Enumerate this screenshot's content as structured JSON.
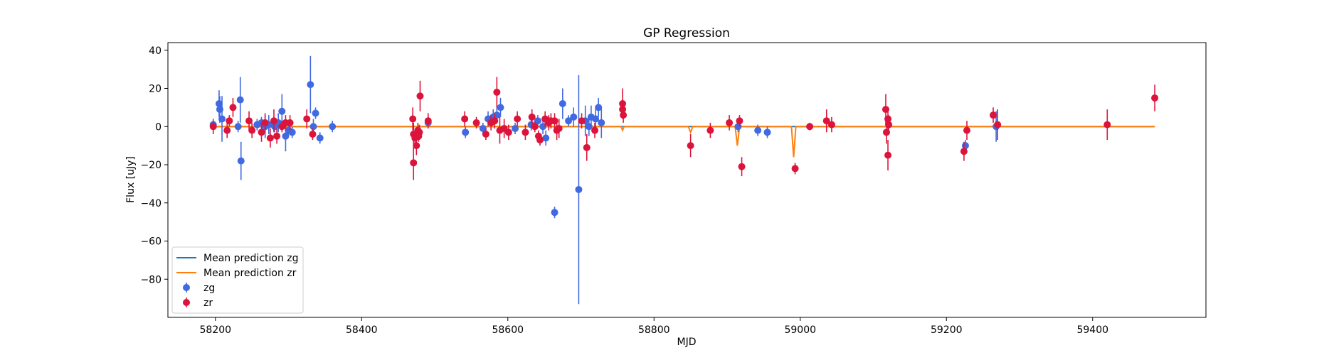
{
  "chart_data": {
    "type": "scatter",
    "title": "GP Regression",
    "xlabel": "MJD",
    "ylabel": "Flux [uJy]",
    "xlim": [
      58135,
      59555
    ],
    "ylim": [
      -100,
      44
    ],
    "xticks": [
      58200,
      58400,
      58600,
      58800,
      59000,
      59200,
      59400
    ],
    "yticks": [
      40,
      20,
      0,
      -20,
      -40,
      -60,
      -80
    ],
    "grid": false,
    "legend_position": "lower-left",
    "legend": [
      {
        "label": "Mean prediction zg",
        "kind": "line",
        "color": "#1f77b4"
      },
      {
        "label": "Mean prediction zr",
        "kind": "line",
        "color": "#ff7f0e"
      },
      {
        "label": "zg",
        "kind": "errorbar",
        "color": "#4169e1"
      },
      {
        "label": "zr",
        "kind": "errorbar",
        "color": "#dc143c"
      }
    ],
    "lines": [
      {
        "name": "Mean prediction zg",
        "color": "#1f77b4",
        "x": [
          58200,
          59485
        ],
        "y": [
          0,
          0
        ]
      },
      {
        "name": "Mean prediction zr",
        "color": "#ff7f0e",
        "x": [
          58200,
          58755,
          58757,
          58759,
          58847,
          58850,
          58853,
          58911,
          58914,
          58917,
          58988,
          58991,
          58994,
          59485
        ],
        "y": [
          0,
          0,
          -2,
          0,
          0,
          -3,
          0,
          0,
          -10,
          0,
          0,
          -16,
          0,
          0
        ]
      }
    ],
    "series": [
      {
        "name": "zg",
        "color": "#4169e1",
        "points": [
          [
            58197,
            1,
            2
          ],
          [
            58205,
            12,
            7
          ],
          [
            58206,
            9,
            7
          ],
          [
            58209,
            4,
            12
          ],
          [
            58231,
            0,
            3
          ],
          [
            58234,
            14,
            12
          ],
          [
            58235,
            -18,
            10
          ],
          [
            58257,
            1,
            3
          ],
          [
            58263,
            2,
            3
          ],
          [
            58268,
            0,
            6
          ],
          [
            58273,
            1,
            5
          ],
          [
            58281,
            0,
            3
          ],
          [
            58286,
            2,
            5
          ],
          [
            58291,
            8,
            9
          ],
          [
            58296,
            -5,
            8
          ],
          [
            58300,
            -2,
            3
          ],
          [
            58305,
            -3,
            3
          ],
          [
            58330,
            22,
            15
          ],
          [
            58334,
            0,
            4
          ],
          [
            58337,
            7,
            3
          ],
          [
            58343,
            -6,
            3
          ],
          [
            58360,
            0,
            3
          ],
          [
            58491,
            2,
            3
          ],
          [
            58542,
            -3,
            3
          ],
          [
            58566,
            -1,
            3
          ],
          [
            58573,
            4,
            4
          ],
          [
            58580,
            5,
            4
          ],
          [
            58585,
            6,
            4
          ],
          [
            58590,
            10,
            5
          ],
          [
            58610,
            -1,
            3
          ],
          [
            58632,
            1,
            3
          ],
          [
            58641,
            3,
            3
          ],
          [
            58648,
            0,
            4
          ],
          [
            58652,
            -6,
            4
          ],
          [
            58664,
            -45,
            3
          ],
          [
            58675,
            12,
            8
          ],
          [
            58683,
            3,
            3
          ],
          [
            58690,
            5,
            5
          ],
          [
            58697,
            -33,
            60
          ],
          [
            58706,
            3,
            8
          ],
          [
            58711,
            0,
            5
          ],
          [
            58714,
            5,
            6
          ],
          [
            58720,
            4,
            5
          ],
          [
            58724,
            10,
            5
          ],
          [
            58728,
            2,
            8
          ],
          [
            58915,
            0,
            3
          ],
          [
            58942,
            -2,
            3
          ],
          [
            58955,
            -3,
            3
          ],
          [
            59226,
            -10,
            3
          ],
          [
            59268,
            0,
            8
          ]
        ]
      },
      {
        "name": "zr",
        "color": "#dc143c",
        "points": [
          [
            58197,
            0,
            4
          ],
          [
            58216,
            -2,
            4
          ],
          [
            58219,
            3,
            3
          ],
          [
            58224,
            10,
            5
          ],
          [
            58246,
            3,
            5
          ],
          [
            58250,
            -2,
            4
          ],
          [
            58263,
            -3,
            5
          ],
          [
            58268,
            2,
            5
          ],
          [
            58275,
            -6,
            5
          ],
          [
            58280,
            3,
            6
          ],
          [
            58284,
            -5,
            4
          ],
          [
            58291,
            0,
            3
          ],
          [
            58296,
            2,
            4
          ],
          [
            58302,
            2,
            4
          ],
          [
            58325,
            4,
            5
          ],
          [
            58333,
            -4,
            3
          ],
          [
            58470,
            4,
            6
          ],
          [
            58471,
            -4,
            6
          ],
          [
            58471,
            -19,
            9
          ],
          [
            58473,
            -6,
            5
          ],
          [
            58475,
            -10,
            5
          ],
          [
            58477,
            -2,
            4
          ],
          [
            58478,
            -5,
            3
          ],
          [
            58479,
            -3,
            4
          ],
          [
            58480,
            16,
            8
          ],
          [
            58491,
            3,
            4
          ],
          [
            58541,
            4,
            4
          ],
          [
            58557,
            2,
            3
          ],
          [
            58570,
            -4,
            3
          ],
          [
            58577,
            2,
            4
          ],
          [
            58582,
            3,
            4
          ],
          [
            58585,
            18,
            8
          ],
          [
            58589,
            -2,
            7
          ],
          [
            58595,
            -1,
            5
          ],
          [
            58601,
            -3,
            4
          ],
          [
            58613,
            4,
            4
          ],
          [
            58624,
            -3,
            4
          ],
          [
            58633,
            5,
            4
          ],
          [
            58637,
            0,
            3
          ],
          [
            58642,
            -5,
            3
          ],
          [
            58644,
            -7,
            3
          ],
          [
            58651,
            4,
            4
          ],
          [
            58656,
            2,
            4
          ],
          [
            58659,
            3,
            4
          ],
          [
            58664,
            3,
            4
          ],
          [
            58667,
            -2,
            5
          ],
          [
            58670,
            -1,
            5
          ],
          [
            58701,
            3,
            4
          ],
          [
            58708,
            -11,
            7
          ],
          [
            58719,
            -2,
            4
          ],
          [
            58757,
            12,
            8
          ],
          [
            58757,
            9,
            5
          ],
          [
            58758,
            6,
            4
          ],
          [
            58850,
            -10,
            6
          ],
          [
            58877,
            -2,
            4
          ],
          [
            58903,
            2,
            4
          ],
          [
            58917,
            3,
            3
          ],
          [
            58920,
            -21,
            5
          ],
          [
            58993,
            -22,
            3
          ],
          [
            59013,
            0,
            2
          ],
          [
            59036,
            3,
            6
          ],
          [
            59043,
            1,
            4
          ],
          [
            59117,
            9,
            8
          ],
          [
            59118,
            -3,
            6
          ],
          [
            59120,
            4,
            6
          ],
          [
            59121,
            1,
            5
          ],
          [
            59120,
            -15,
            8
          ],
          [
            59224,
            -13,
            5
          ],
          [
            59228,
            -2,
            5
          ],
          [
            59264,
            6,
            4
          ],
          [
            59270,
            1,
            8
          ],
          [
            59420,
            1,
            8
          ],
          [
            59485,
            15,
            7
          ]
        ]
      }
    ]
  }
}
